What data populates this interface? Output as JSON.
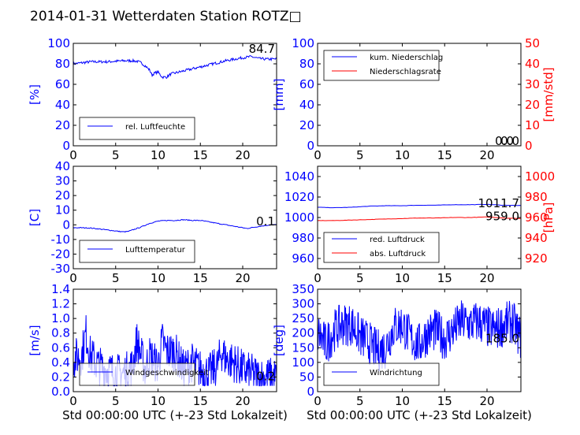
{
  "title": "2014-01-31 Wetterdaten Station ROTZ□",
  "colors": {
    "blue": "#0000ff",
    "red": "#ff0000",
    "black": "#000000"
  },
  "chart_data": [
    {
      "id": "humidity",
      "type": "line",
      "ylabel": "[%]",
      "xlabel": "",
      "xlim": [
        0,
        24
      ],
      "xticks": [
        0,
        5,
        10,
        15,
        20
      ],
      "ylim": [
        0,
        100
      ],
      "yticks": [
        0,
        20,
        40,
        60,
        80,
        100
      ],
      "value_label": "84.7",
      "legend": {
        "placement": "lower-left"
      },
      "series": [
        {
          "name": "rel. Luftfeuchte",
          "color": "#0000ff",
          "x": [
            0,
            1,
            2,
            3,
            4,
            5,
            6,
            7,
            7.5,
            8,
            8.5,
            9,
            9.3,
            9.6,
            10,
            10.5,
            11,
            11.5,
            12,
            13,
            14,
            15,
            16,
            17,
            18,
            19,
            20,
            21,
            22,
            23,
            24
          ],
          "y": [
            80,
            81,
            82,
            82,
            82,
            82.5,
            83,
            83,
            82.5,
            81,
            78,
            74,
            69,
            71,
            72,
            67,
            67,
            70,
            71,
            73,
            75,
            77,
            79,
            81,
            83,
            84.5,
            86,
            87,
            85,
            84.5,
            84.7
          ],
          "noise": 1.3,
          "points": 300
        }
      ]
    },
    {
      "id": "precip",
      "type": "line",
      "ylabel": "[mm]",
      "ylabel_right": "[mm/std]",
      "xlabel": "",
      "xlim": [
        0,
        24
      ],
      "xticks": [
        0,
        5,
        10,
        15,
        20
      ],
      "ylim": [
        0,
        100
      ],
      "yticks": [
        0,
        20,
        40,
        60,
        80,
        100
      ],
      "ylim_right": [
        0,
        50
      ],
      "yticks_right": [
        0,
        10,
        20,
        30,
        40,
        50
      ],
      "value_labels": [
        "0.0",
        "0.0"
      ],
      "legend": {
        "placement": "upper-left"
      },
      "series": [
        {
          "name": "kum. Niederschlag",
          "color": "#0000ff",
          "axis": "left",
          "x": [
            0,
            24
          ],
          "y": [
            0,
            0
          ],
          "noise": 0,
          "points": 2
        },
        {
          "name": "Niederschlagsrate",
          "color": "#ff0000",
          "axis": "right",
          "x": [
            0,
            24
          ],
          "y": [
            0,
            0
          ],
          "noise": 0,
          "points": 2
        }
      ]
    },
    {
      "id": "temperature",
      "type": "line",
      "ylabel": "[C]",
      "xlabel": "",
      "xlim": [
        0,
        24
      ],
      "xticks": [
        0,
        5,
        10,
        15,
        20
      ],
      "ylim": [
        -30,
        40
      ],
      "yticks": [
        -30,
        -20,
        -10,
        0,
        10,
        20,
        30,
        40
      ],
      "value_label": "0.1",
      "legend": {
        "placement": "lower-left"
      },
      "series": [
        {
          "name": "Lufttemperatur",
          "color": "#0000ff",
          "x": [
            0,
            1,
            2,
            3,
            4,
            5,
            5.5,
            6,
            6.5,
            7,
            8,
            9,
            10,
            11,
            12,
            13,
            14,
            15,
            16,
            17,
            18,
            19,
            20,
            20.5,
            21,
            22,
            23,
            24
          ],
          "y": [
            -2,
            -2,
            -2.2,
            -2.8,
            -3.5,
            -4.2,
            -4.6,
            -4.8,
            -4.5,
            -3.5,
            -1.5,
            1,
            2.5,
            3,
            3,
            3.5,
            3,
            3,
            2,
            1,
            0,
            -1,
            -2,
            -2.5,
            -2,
            -1,
            -0.2,
            0.1
          ],
          "noise": 0.3,
          "points": 240
        }
      ]
    },
    {
      "id": "pressure",
      "type": "line",
      "ylabel": "",
      "ylabel_right": "[hPa]",
      "xlabel": "",
      "xlim": [
        0,
        24
      ],
      "xticks": [
        0,
        5,
        10,
        15,
        20
      ],
      "ylim": [
        950,
        1050
      ],
      "yticks": [
        960,
        980,
        1000,
        1020,
        1040
      ],
      "ylim_right": [
        910,
        1010
      ],
      "yticks_right": [
        920,
        940,
        960,
        980,
        1000
      ],
      "value_labels": [
        "1011.7",
        "959.0"
      ],
      "legend": {
        "placement": "lower-left"
      },
      "series": [
        {
          "name": "red. Luftdruck",
          "color": "#0000ff",
          "axis": "left",
          "x": [
            0,
            2,
            4,
            6,
            8,
            10,
            12,
            14,
            16,
            18,
            20,
            22,
            24
          ],
          "y": [
            1010,
            1009.5,
            1010,
            1011,
            1011.5,
            1011.5,
            1012,
            1012,
            1012.5,
            1012.5,
            1012.8,
            1012,
            1011.7
          ],
          "noise": 0.15,
          "points": 120
        },
        {
          "name": "abs. Luftdruck",
          "color": "#ff0000",
          "axis": "right",
          "x": [
            0,
            2,
            4,
            6,
            8,
            10,
            12,
            14,
            16,
            18,
            20,
            22,
            24
          ],
          "y": [
            957,
            957,
            957.5,
            958,
            958.5,
            959,
            959.5,
            959.5,
            960,
            960,
            960.5,
            959.5,
            959
          ],
          "noise": 0.15,
          "points": 120
        }
      ]
    },
    {
      "id": "windspeed",
      "type": "line",
      "ylabel": "[m/s]",
      "xlabel": "Std 00:00:00 UTC (+-23 Std Lokalzeit)",
      "xlim": [
        0,
        24
      ],
      "xticks": [
        0,
        5,
        10,
        15,
        20
      ],
      "ylim": [
        0,
        1.4
      ],
      "yticks": [
        0.0,
        0.2,
        0.4,
        0.6,
        0.8,
        1.0,
        1.2,
        1.4
      ],
      "value_label": "0.2",
      "legend": {
        "placement": "lower-left"
      },
      "series": [
        {
          "name": "Windgeschwindigkeit",
          "color": "#0000ff",
          "x": [
            0,
            1,
            1.5,
            2,
            3,
            4,
            5,
            6,
            7,
            7.5,
            8.5,
            9,
            10,
            10.5,
            11,
            12,
            13,
            14,
            15,
            16,
            17,
            17.5,
            18,
            19,
            20,
            21,
            22,
            23,
            24
          ],
          "y": [
            0.45,
            0.5,
            0.8,
            0.5,
            0.35,
            0.3,
            0.25,
            0.25,
            0.35,
            0.7,
            0.3,
            0.5,
            0.35,
            0.7,
            0.55,
            0.55,
            0.3,
            0.4,
            0.3,
            0.25,
            0.35,
            0.55,
            0.45,
            0.4,
            0.3,
            0.25,
            0.2,
            0.2,
            0.2
          ],
          "noise": 0.28,
          "points": 480
        }
      ]
    },
    {
      "id": "winddir",
      "type": "line",
      "ylabel": "[deg]",
      "xlabel": "Std 00:00:00 UTC (+-23 Std Lokalzeit)",
      "xlim": [
        0,
        24
      ],
      "xticks": [
        0,
        5,
        10,
        15,
        20
      ],
      "ylim": [
        0,
        350
      ],
      "yticks": [
        0,
        50,
        100,
        150,
        200,
        250,
        300,
        350
      ],
      "value_label": "185.0",
      "legend": {
        "placement": "lower-left"
      },
      "series": [
        {
          "name": "Windrichtung",
          "color": "#0000ff",
          "x": [
            0,
            1,
            2,
            3,
            4,
            5,
            6,
            7,
            8,
            9,
            10,
            11,
            12,
            13,
            14,
            15,
            16,
            17,
            18,
            19,
            20,
            21,
            22,
            23,
            24
          ],
          "y": [
            200,
            160,
            210,
            230,
            230,
            190,
            170,
            140,
            150,
            220,
            230,
            180,
            160,
            200,
            210,
            180,
            210,
            240,
            230,
            240,
            220,
            210,
            230,
            240,
            180
          ],
          "noise": 75,
          "points": 480
        }
      ]
    }
  ]
}
